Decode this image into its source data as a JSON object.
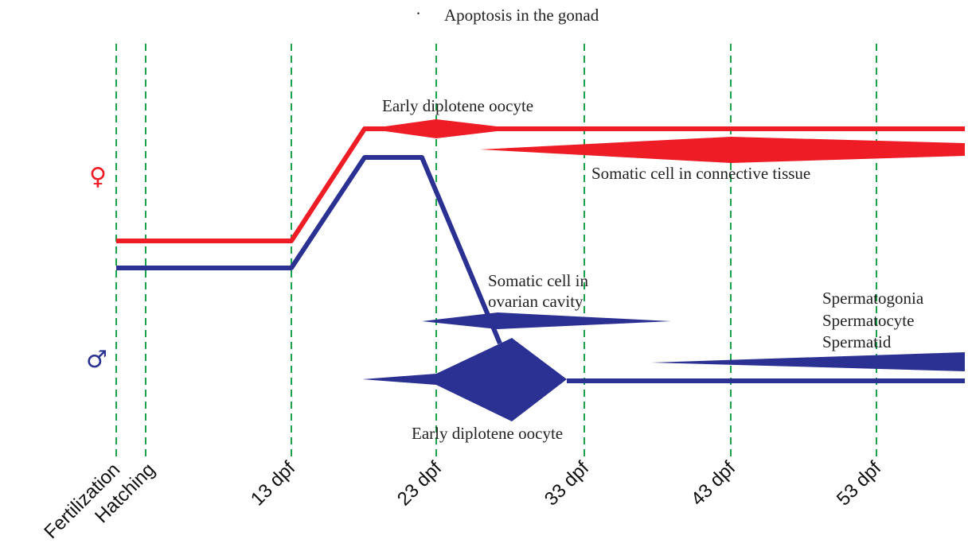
{
  "title": "Apoptosis in the gonad",
  "title_bullet": "·",
  "female_symbol": "♀",
  "male_symbol": "♂",
  "colors": {
    "female": "#ee1c25",
    "male": "#2b3192",
    "gridline": "#1aa34a",
    "text": "#222222"
  },
  "timepoints": [
    "Fertilization",
    "Hatching",
    "13 dpf",
    "23 dpf",
    "33 dpf",
    "43 dpf",
    "53 dpf"
  ],
  "labels": {
    "female_oocyte": "Early diplotene oocyte",
    "female_somatic": "Somatic cell in connective tissue",
    "male_somatic_line1": "Somatic cell in",
    "male_somatic_line2": "ovarian cavity",
    "spermatogonia": "Spermatogonia",
    "spermatocyte": "Spermatocyte",
    "spermatid": "Spermatid",
    "male_oocyte": "Early diplotene oocyte"
  }
}
